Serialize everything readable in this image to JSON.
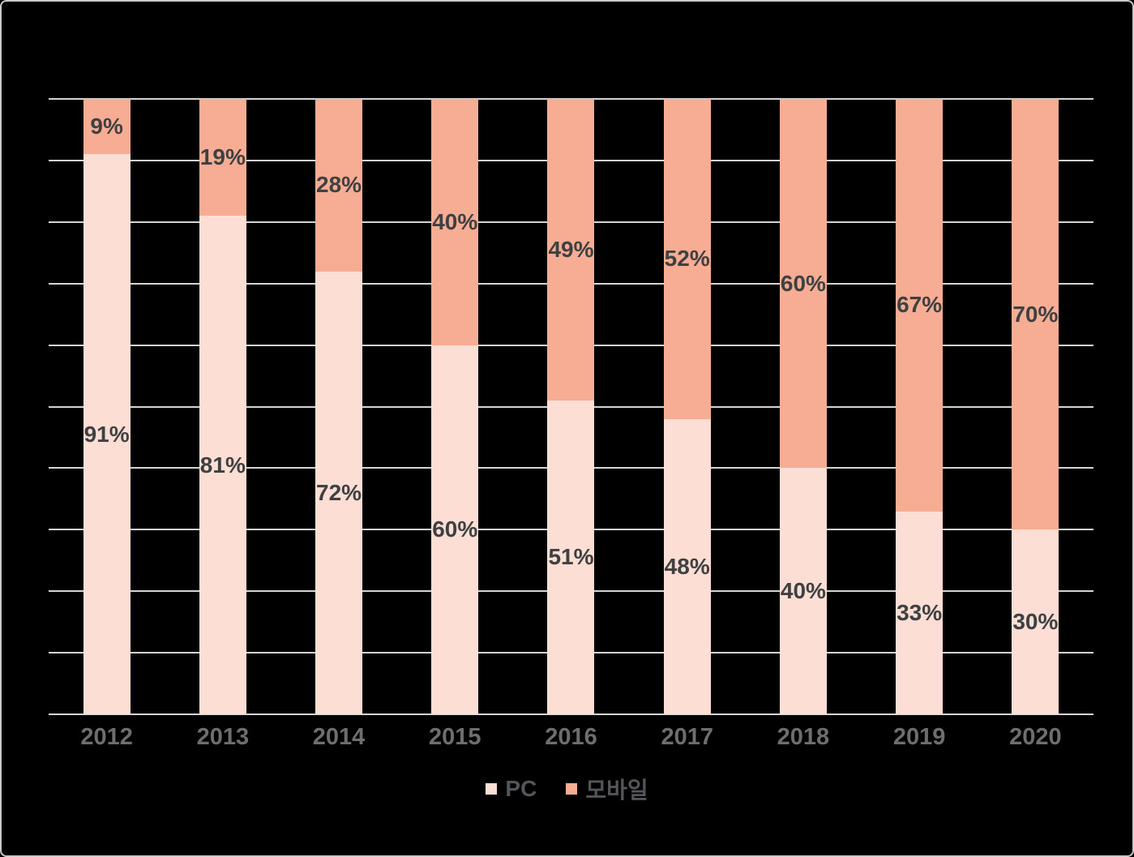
{
  "canvas": {
    "background": "#000000",
    "border_color": "#c9c9c9"
  },
  "colors": {
    "canvas_bg": "#000000",
    "border_color": "#c9c9c9",
    "gridline": "#d4d4d4",
    "data_label": "#3e4042",
    "axis_label": "#6e6e6e",
    "legend_label": "#54555a"
  },
  "chart_data": {
    "type": "bar",
    "stacked": true,
    "percent_stacked": true,
    "title": "",
    "xlabel": "",
    "ylabel": "",
    "value_suffix": "%",
    "categories": [
      "2012",
      "2013",
      "2014",
      "2015",
      "2016",
      "2017",
      "2018",
      "2019",
      "2020"
    ],
    "series": [
      {
        "name": "PC",
        "color": "#fcded4",
        "values": [
          91,
          81,
          72,
          60,
          51,
          48,
          40,
          33,
          30
        ]
      },
      {
        "name": "모바일",
        "color": "#f7ad94",
        "values": [
          9,
          19,
          28,
          40,
          49,
          52,
          60,
          67,
          70
        ]
      }
    ],
    "ylim": [
      0,
      100
    ],
    "gridline_step": 10,
    "grid": true,
    "y_tick_labels_visible": false,
    "legend_position": "bottom",
    "data_labels": "centered-in-segment"
  }
}
